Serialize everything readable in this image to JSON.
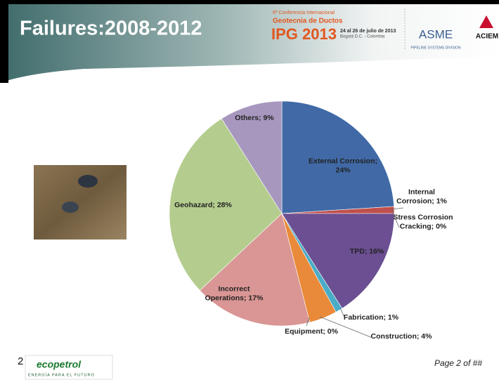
{
  "header": {
    "title": "Failures:2008-2012",
    "conference": [
      "6ª Conferencia Internacional",
      "Geotecnia de Ductos",
      "IPG 2013"
    ],
    "dates": [
      "24 al 26 de julio de 2013",
      "Bogotá D.C. - Colombia"
    ],
    "asme": [
      "ASME",
      "PIPELINE SYSTEMS DIVISION"
    ],
    "aciem": "ACIEM"
  },
  "chart_data": {
    "type": "pie",
    "values": [
      24,
      1,
      0,
      16,
      1,
      4,
      0,
      17,
      28,
      9
    ],
    "value_labels": [
      [
        "External Corrosion;",
        "24%"
      ],
      [
        "Internal",
        "Corrosion; 1%"
      ],
      [
        "Stress Corrosion",
        "Cracking; 0%"
      ],
      [
        "TPD; 16%"
      ],
      [
        "Fabrication; 1%"
      ],
      [
        "Construction; 4%"
      ],
      [
        "Equipment; 0%"
      ],
      [
        "Incorrect",
        "Operations; 17%"
      ],
      [
        "Geohazard; 28%"
      ],
      [
        "Others; 9%"
      ]
    ],
    "colors": [
      "#4069a6",
      "#c0504d",
      "#9bbb59",
      "#6b4f92",
      "#4aacc6",
      "#e98a3a",
      "#4f81bd",
      "#d99694",
      "#b4cd8e",
      "#a797bf"
    ]
  },
  "footer": {
    "slide_number": "2",
    "logo": [
      "ecopetrol",
      "ENERGÍA PARA EL FUTURO"
    ],
    "page": "Page 2 of ##"
  }
}
